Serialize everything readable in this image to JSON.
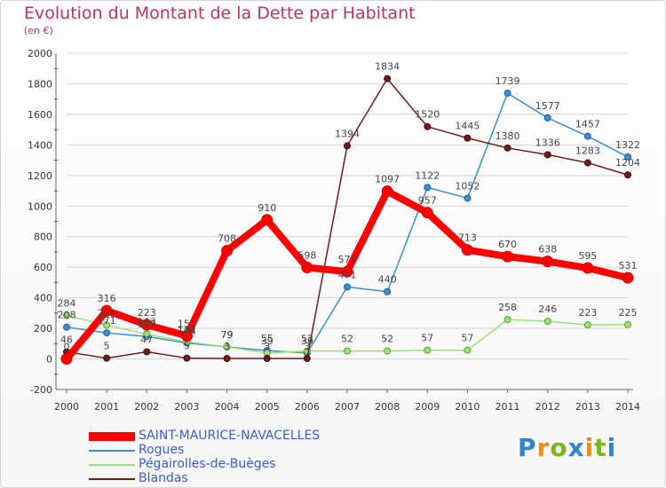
{
  "title": "Evolution du Montant de la Dette par Habitant",
  "subtitle": "(en €)",
  "logo_text": "Proxiti",
  "colors": {
    "title": "#b9345f",
    "SAINT-MAURICE-NAVACELLES": "#ff0000",
    "Rogues": "#3c8fd1",
    "Pégairolles-de-Buèges": "#9ee07a",
    "Blandas": "#6e1d1d"
  },
  "chart_data": {
    "type": "line",
    "title": "Evolution du Montant de la Dette par Habitant",
    "subtitle": "(en €)",
    "xlabel": "",
    "ylabel": "",
    "ylim": [
      -200,
      2000
    ],
    "yticks": [
      -200,
      0,
      200,
      400,
      600,
      800,
      1000,
      1200,
      1400,
      1600,
      1800,
      2000
    ],
    "grid": true,
    "legend_position": "bottom-left",
    "x": [
      2000,
      2001,
      2002,
      2003,
      2004,
      2005,
      2006,
      2007,
      2008,
      2009,
      2010,
      2011,
      2012,
      2013,
      2014
    ],
    "series": [
      {
        "name": "SAINT-MAURICE-NAVACELLES",
        "values": [
          0,
          316,
          223,
          151,
          708,
          910,
          598,
          571,
          1097,
          957,
          713,
          670,
          638,
          595,
          531
        ]
      },
      {
        "name": "Rogues",
        "values": [
          208,
          171,
          147,
          104,
          79,
          55,
          39,
          471,
          440,
          1122,
          1052,
          1739,
          1577,
          1457,
          1322
        ]
      },
      {
        "name": "Pégairolles-de-Buèges",
        "values": [
          284,
          221,
          163,
          112,
          79,
          39,
          52,
          52,
          52,
          57,
          57,
          258,
          246,
          223,
          225
        ]
      },
      {
        "name": "Blandas",
        "values": [
          46,
          5,
          47,
          5,
          3,
          3,
          3,
          1394,
          1834,
          1520,
          1445,
          1380,
          1336,
          1283,
          1204
        ]
      }
    ]
  }
}
